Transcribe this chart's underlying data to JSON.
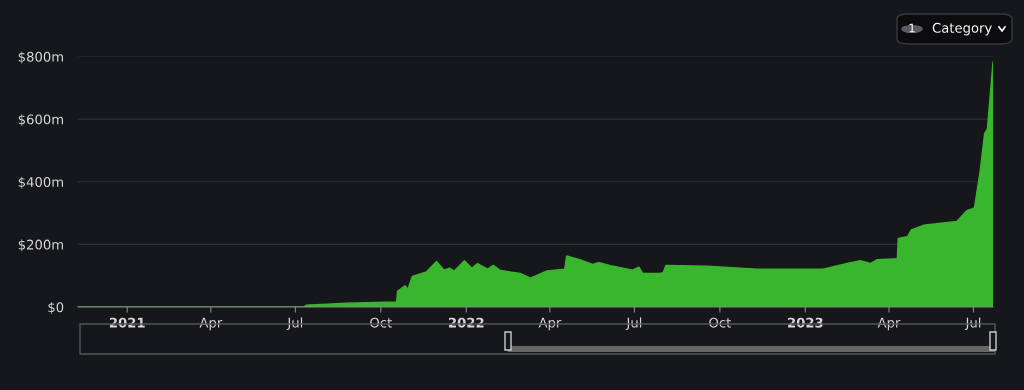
{
  "chart_data": {
    "type": "area",
    "x": [
      "2020-11-09",
      "2021-07-10",
      "2021-07-13",
      "2021-08-25",
      "2021-10-18",
      "2021-10-19",
      "2021-10-27",
      "2021-10-30",
      "2021-11-04",
      "2021-11-19",
      "2021-11-30",
      "2021-12-08",
      "2021-12-14",
      "2021-12-19",
      "2021-12-30",
      "2022-01-07",
      "2022-01-13",
      "2022-01-24",
      "2022-01-30",
      "2022-02-06",
      "2022-02-17",
      "2022-02-28",
      "2022-03-11",
      "2022-03-29",
      "2022-04-17",
      "2022-04-19",
      "2022-05-03",
      "2022-05-17",
      "2022-05-23",
      "2022-06-08",
      "2022-06-29",
      "2022-07-06",
      "2022-07-10",
      "2022-07-28",
      "2022-08-01",
      "2022-08-04",
      "2022-09-17",
      "2022-11-10",
      "2023-01-20",
      "2023-02-15",
      "2023-03-01",
      "2023-03-12",
      "2023-03-19",
      "2023-04-10",
      "2023-04-11",
      "2023-04-21",
      "2023-04-25",
      "2023-05-08",
      "2023-06-13",
      "2023-06-24",
      "2023-06-30",
      "2023-07-02",
      "2023-07-08",
      "2023-07-13",
      "2023-07-16",
      "2023-07-22"
    ],
    "series": [
      {
        "color": "#3ab52e",
        "values": [
          0,
          0,
          6,
          12,
          16,
          50,
          68,
          56,
          98,
          112,
          145,
          118,
          124,
          115,
          148,
          124,
          139,
          121,
          133,
          118,
          112,
          107,
          92,
          115,
          121,
          163,
          151,
          136,
          142,
          130,
          118,
          127,
          107,
          107,
          110,
          133,
          130,
          121,
          121,
          139,
          148,
          139,
          151,
          154,
          219,
          225,
          246,
          261,
          273,
          308,
          314,
          317,
          430,
          554,
          569,
          782
        ]
      }
    ],
    "xlim": [
      "2020-11-09",
      "2023-07-22"
    ],
    "xticks": [
      {
        "value": "2021-01-01",
        "label": "2021"
      },
      {
        "value": "2021-04-01",
        "label": "Apr"
      },
      {
        "value": "2021-07-01",
        "label": "Jul"
      },
      {
        "value": "2021-10-01",
        "label": "Oct"
      },
      {
        "value": "2022-01-01",
        "label": "2022"
      },
      {
        "value": "2022-04-01",
        "label": "Apr"
      },
      {
        "value": "2022-07-01",
        "label": "Jul"
      },
      {
        "value": "2022-10-01",
        "label": "Oct"
      },
      {
        "value": "2023-01-01",
        "label": "2023"
      },
      {
        "value": "2023-04-01",
        "label": "Apr"
      },
      {
        "value": "2023-07-01",
        "label": "Jul"
      }
    ],
    "ylim": [
      0,
      800
    ],
    "yticks": [
      {
        "value": 0,
        "label": "$0"
      },
      {
        "value": 200,
        "label": "$200m"
      },
      {
        "value": 400,
        "label": "$400m"
      },
      {
        "value": 600,
        "label": "$600m"
      },
      {
        "value": 800,
        "label": "$800m"
      }
    ],
    "grid": "y",
    "annotations": [
      "1",
      "Category"
    ]
  }
}
